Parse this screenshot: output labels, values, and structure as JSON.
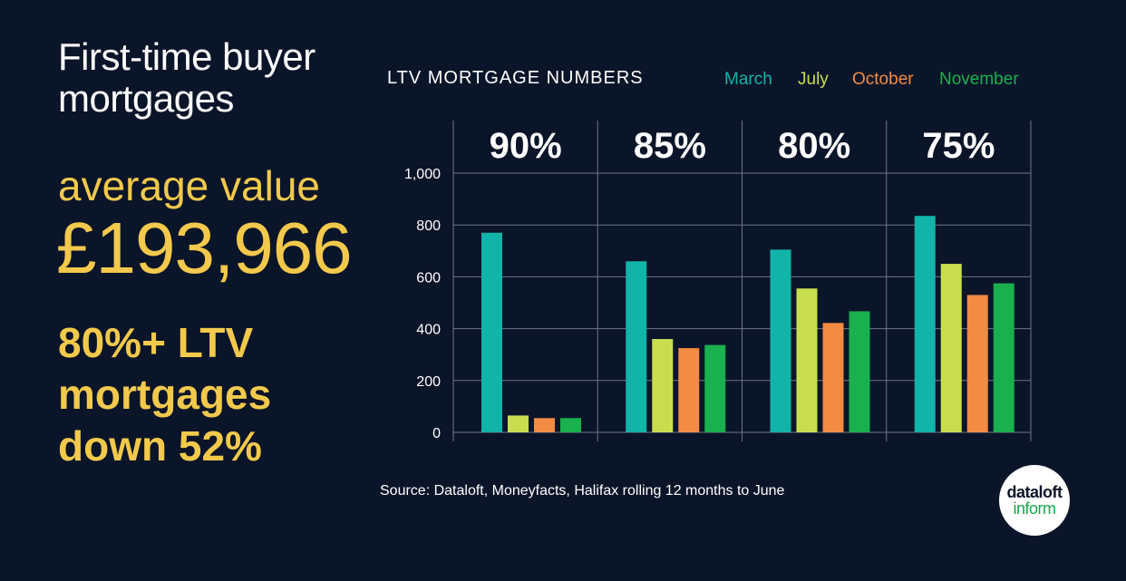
{
  "headline": {
    "line1": "First-time buyer",
    "line2": "mortgages"
  },
  "average": {
    "label": "average value",
    "value": "£193,966"
  },
  "callout": {
    "line1": "80%+ LTV",
    "line2": "mortgages",
    "line3": "down 52%"
  },
  "logo": {
    "line1": "dataloft",
    "line2": "inform"
  },
  "colors": {
    "background": "#0b1529",
    "headline": "#ffffff",
    "accent": "#f2c94c"
  },
  "chart_data": {
    "type": "bar",
    "title": "LTV MORTGAGE NUMBERS",
    "source": "Source:  Dataloft, Moneyfacts, Halifax rolling 12 months to June",
    "categories": [
      "90%",
      "85%",
      "80%",
      "75%"
    ],
    "series": [
      {
        "name": "March",
        "color": "#12b3a8",
        "values": [
          770,
          660,
          705,
          835
        ]
      },
      {
        "name": "July",
        "color": "#c9de4e",
        "values": [
          65,
          360,
          555,
          650
        ]
      },
      {
        "name": "October",
        "color": "#f28b43",
        "values": [
          55,
          325,
          422,
          530
        ]
      },
      {
        "name": "November",
        "color": "#19b04e",
        "values": [
          55,
          337,
          467,
          575
        ]
      }
    ],
    "y_ticks": [
      "0",
      "200",
      "400",
      "600",
      "800",
      "1,000"
    ],
    "y_tick_values": [
      0,
      200,
      400,
      600,
      800,
      1000
    ],
    "ylim": [
      0,
      1000
    ],
    "grid": true,
    "legend": "top-right"
  }
}
